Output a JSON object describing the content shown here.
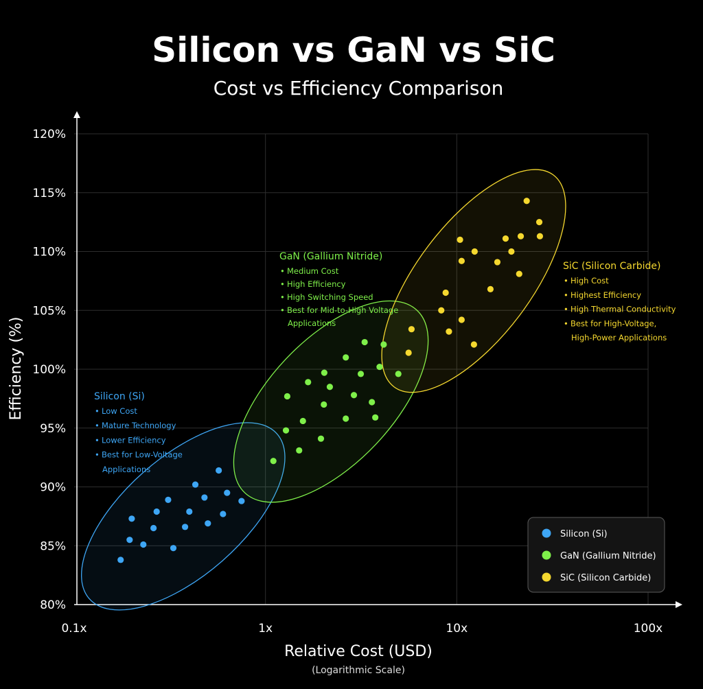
{
  "chart_data": {
    "type": "scatter",
    "title": "Silicon vs GaN vs SiC",
    "subtitle": "Cost vs Efficiency Comparison",
    "xlabel": "Relative Cost (USD)",
    "xlabel_note": "(Logarithmic Scale)",
    "ylabel": "Efficiency (%)",
    "x_scale": "log",
    "xlim": [
      0.1,
      100
    ],
    "ylim": [
      80,
      120
    ],
    "x_ticks": [
      {
        "value": 0.1,
        "label": "0.1x"
      },
      {
        "value": 1,
        "label": "1x"
      },
      {
        "value": 10,
        "label": "10x"
      },
      {
        "value": 100,
        "label": "100x"
      }
    ],
    "y_ticks": [
      {
        "value": 80,
        "label": "80%"
      },
      {
        "value": 85,
        "label": "85%"
      },
      {
        "value": 90,
        "label": "90%"
      },
      {
        "value": 95,
        "label": "95%"
      },
      {
        "value": 100,
        "label": "100%"
      },
      {
        "value": 105,
        "label": "105%"
      },
      {
        "value": 110,
        "label": "110%"
      },
      {
        "value": 115,
        "label": "115%"
      },
      {
        "value": 120,
        "label": "120%"
      }
    ],
    "grid": true,
    "legend_position": "bottom-right",
    "series": [
      {
        "name": "Silicon (Si)",
        "color": "#3ea6f5",
        "points": [
          [
            0.175,
            83.8
          ],
          [
            0.195,
            85.5
          ],
          [
            0.2,
            87.3
          ],
          [
            0.23,
            85.1
          ],
          [
            0.26,
            86.5
          ],
          [
            0.27,
            87.9
          ],
          [
            0.31,
            88.9
          ],
          [
            0.33,
            84.8
          ],
          [
            0.38,
            86.6
          ],
          [
            0.4,
            87.9
          ],
          [
            0.43,
            90.2
          ],
          [
            0.48,
            89.1
          ],
          [
            0.5,
            86.9
          ],
          [
            0.57,
            91.4
          ],
          [
            0.6,
            87.7
          ],
          [
            0.63,
            89.5
          ],
          [
            0.75,
            88.8
          ]
        ]
      },
      {
        "name": "GaN (Gallium Nitride)",
        "color": "#7ff04a",
        "points": [
          [
            1.1,
            92.2
          ],
          [
            1.28,
            94.8
          ],
          [
            1.3,
            97.7
          ],
          [
            1.5,
            93.1
          ],
          [
            1.57,
            95.6
          ],
          [
            1.67,
            98.9
          ],
          [
            1.95,
            94.1
          ],
          [
            2.02,
            97.0
          ],
          [
            2.03,
            99.7
          ],
          [
            2.17,
            98.5
          ],
          [
            2.63,
            95.8
          ],
          [
            2.63,
            101.0
          ],
          [
            2.9,
            97.8
          ],
          [
            3.15,
            99.6
          ],
          [
            3.3,
            102.3
          ],
          [
            3.6,
            97.2
          ],
          [
            3.75,
            95.9
          ],
          [
            3.95,
            100.2
          ],
          [
            4.15,
            102.1
          ],
          [
            4.95,
            99.6
          ]
        ]
      },
      {
        "name": "SiC (Silicon Carbide)",
        "color": "#f5d82f",
        "points": [
          [
            5.6,
            101.4
          ],
          [
            5.8,
            103.4
          ],
          [
            8.3,
            105.0
          ],
          [
            8.75,
            106.5
          ],
          [
            9.1,
            103.2
          ],
          [
            10.4,
            111.0
          ],
          [
            10.6,
            109.2
          ],
          [
            10.6,
            104.2
          ],
          [
            12.3,
            102.1
          ],
          [
            12.4,
            110.0
          ],
          [
            15.0,
            106.8
          ],
          [
            16.3,
            109.1
          ],
          [
            18.0,
            111.1
          ],
          [
            19.3,
            110.0
          ],
          [
            21.2,
            108.1
          ],
          [
            21.6,
            111.3
          ],
          [
            23.2,
            114.3
          ],
          [
            27.0,
            112.5
          ],
          [
            27.2,
            111.3
          ]
        ]
      }
    ],
    "clusters": [
      {
        "series": "Silicon (Si)",
        "x_range": [
          0.12,
          1.15
        ],
        "y_range": [
          80.5,
          94.5
        ]
      },
      {
        "series": "GaN (Gallium Nitride)",
        "x_range": [
          0.78,
          6.2
        ],
        "y_range": [
          89.5,
          105.0
        ]
      },
      {
        "series": "SiC (Silicon Carbide)",
        "x_range": [
          4.7,
          32.0
        ],
        "y_range": [
          98.5,
          116.5
        ]
      }
    ],
    "annotations": [
      {
        "title": "Silicon (Si)",
        "color": "#3ea6f5",
        "items": [
          "Low Cost",
          "Mature Technology",
          "Lower Efficiency",
          "Best for Low-Voltage",
          "Applications"
        ]
      },
      {
        "title": "GaN (Gallium Nitride)",
        "color": "#7ff04a",
        "items": [
          "Medium Cost",
          "High Efficiency",
          "High Switching Speed",
          "Best for Mid-to-High Voltage",
          "Applications"
        ]
      },
      {
        "title": "SiC (Silicon Carbide)",
        "color": "#f5d82f",
        "items": [
          "High Cost",
          "Highest Efficiency",
          "High Thermal Conductivity",
          "Best for High-Voltage,",
          "High-Power Applications"
        ]
      }
    ],
    "legend": [
      "Silicon (Si)",
      "GaN (Gallium Nitride)",
      "SiC (Silicon Carbide)"
    ]
  }
}
